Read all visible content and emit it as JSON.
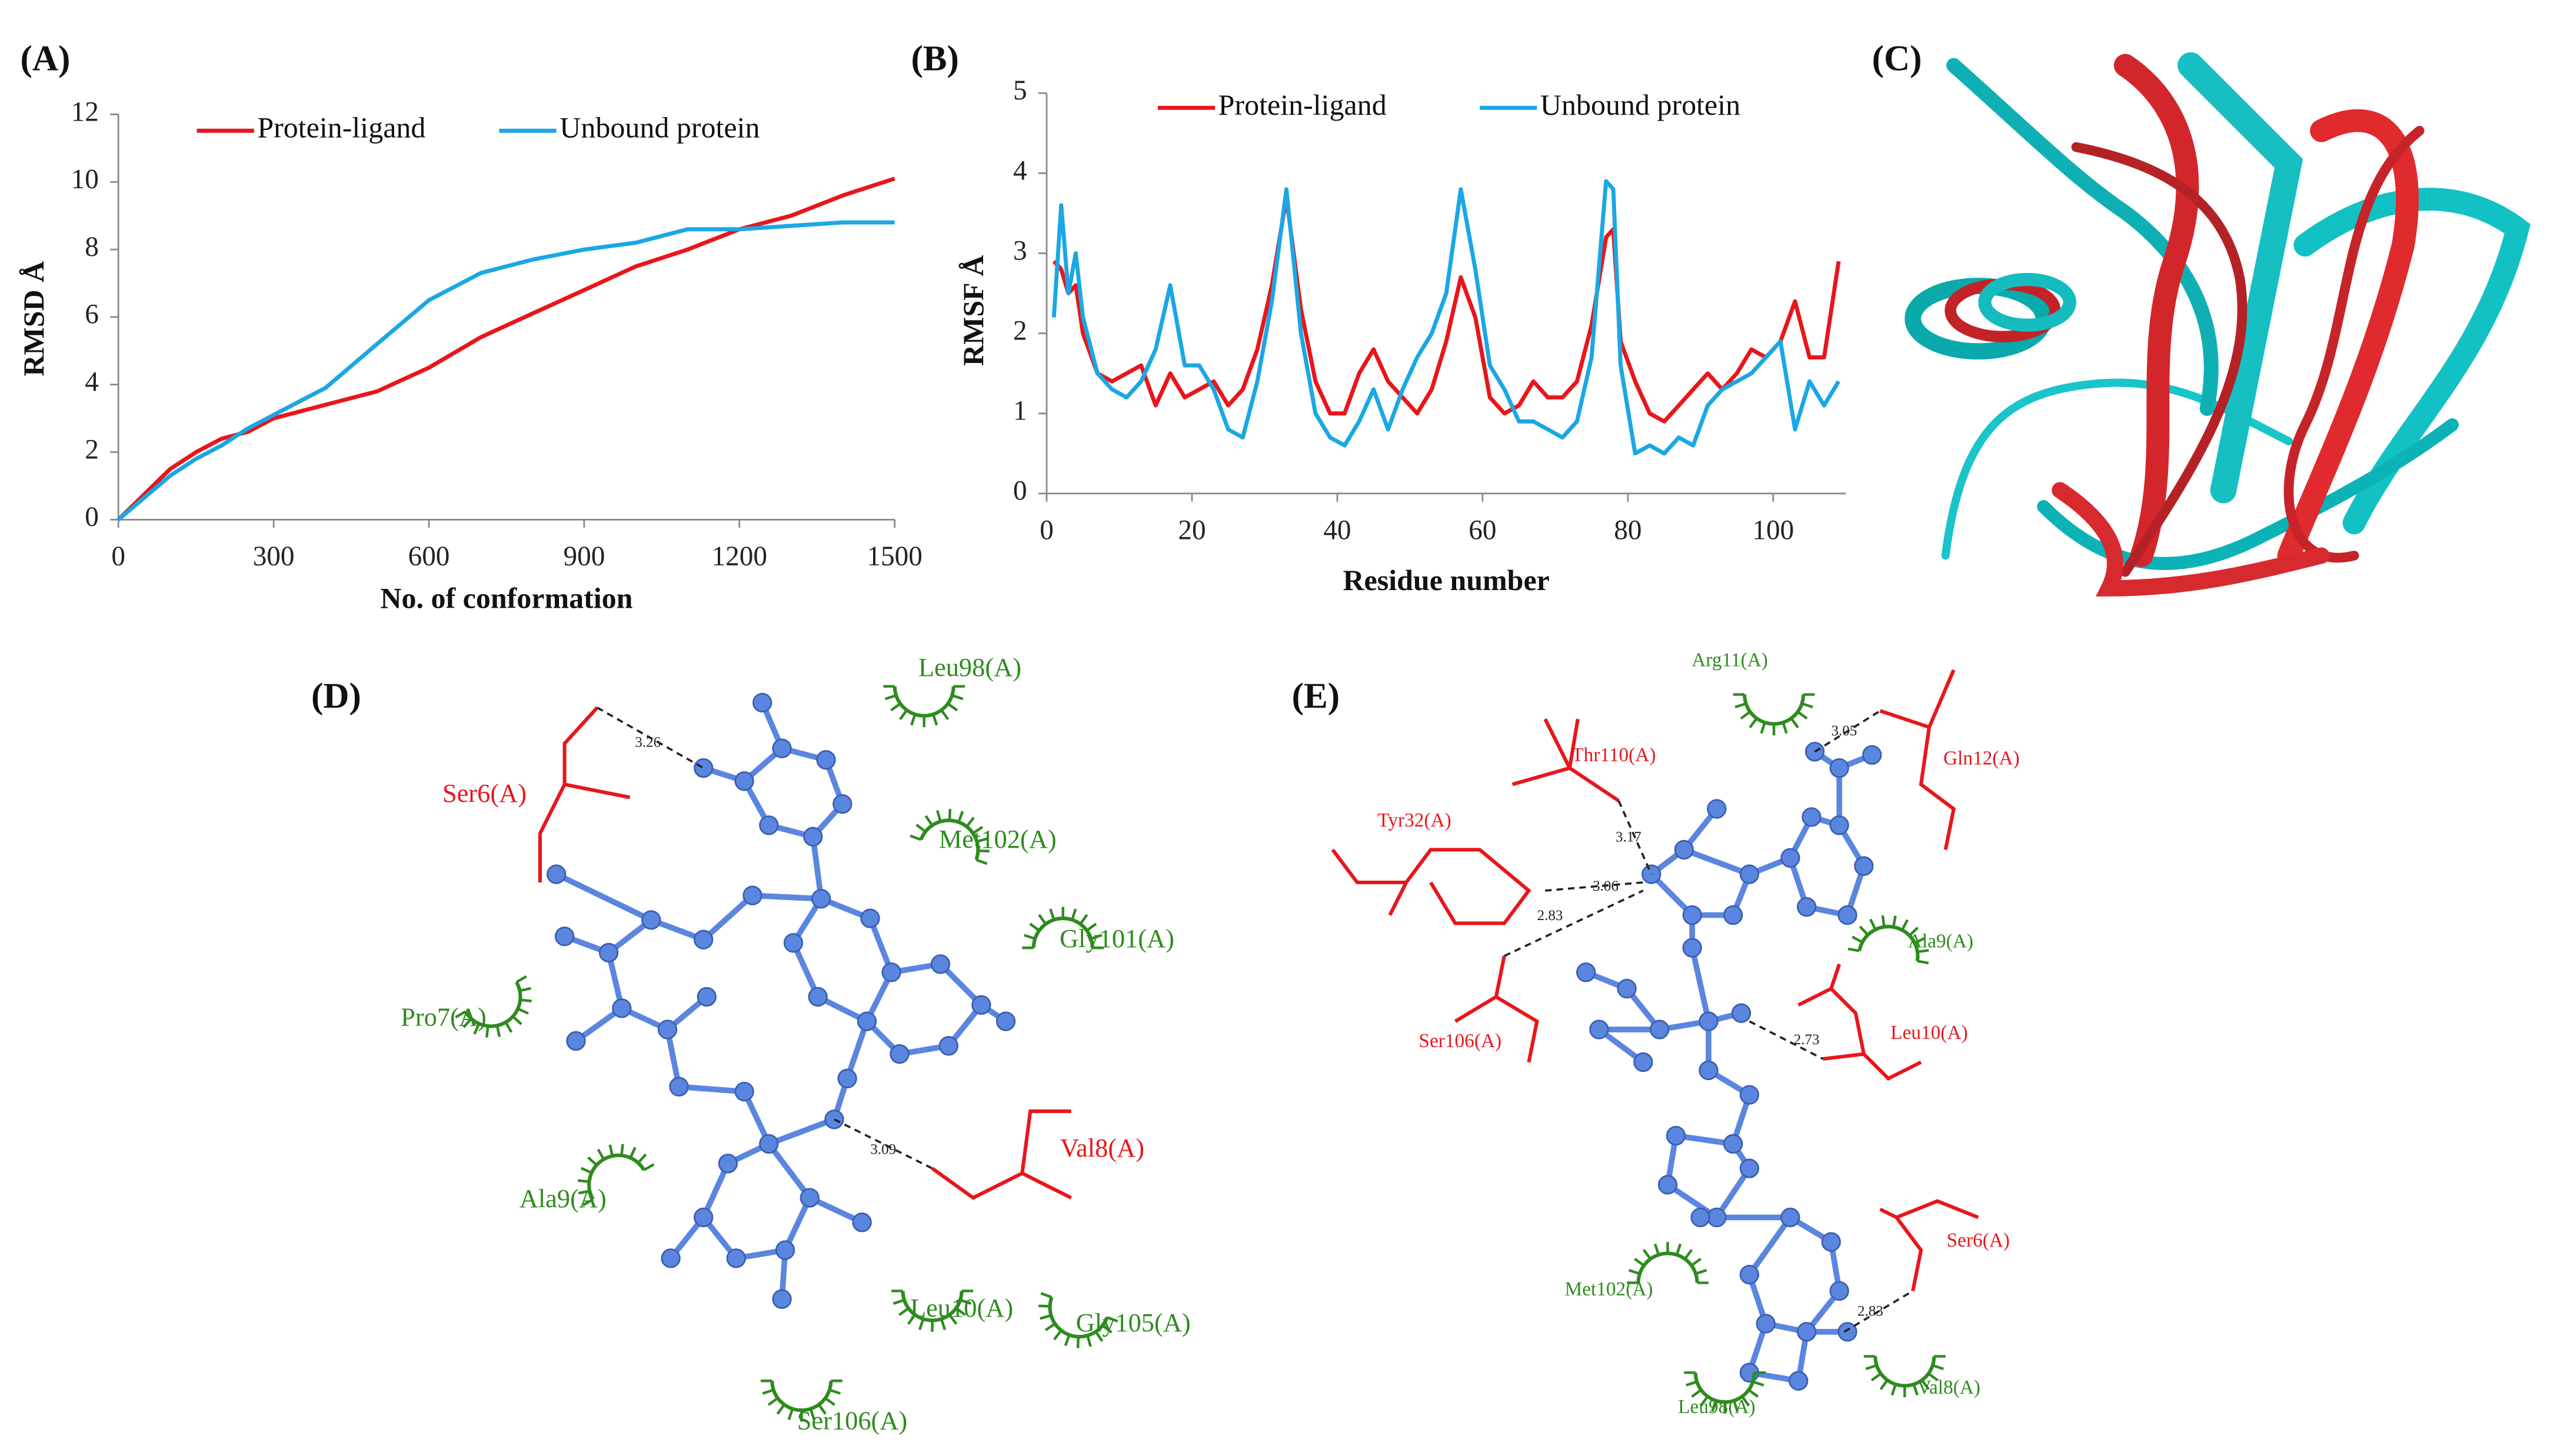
{
  "panel_labels": [
    "(A)",
    "(B)",
    "(C)",
    "(D)",
    "(E)"
  ],
  "chart_data": [
    {
      "type": "line",
      "x_label": "No. of conformation",
      "y_label": "RMSD Å",
      "x": [
        0,
        100,
        150,
        200,
        250,
        300,
        400,
        500,
        600,
        700,
        800,
        900,
        1000,
        1100,
        1200,
        1300,
        1400,
        1500
      ],
      "series": [
        {
          "name": "Protein-ligand",
          "color": "#e8161b",
          "values": [
            0,
            1.5,
            2.0,
            2.4,
            2.6,
            3.0,
            3.4,
            3.8,
            4.5,
            5.4,
            6.1,
            6.8,
            7.5,
            8.0,
            8.6,
            9.0,
            9.6,
            10.1
          ]
        },
        {
          "name": "Unbound protein",
          "color": "#1aa7e4",
          "values": [
            0,
            1.3,
            1.8,
            2.2,
            2.7,
            3.1,
            3.9,
            5.2,
            6.5,
            7.3,
            7.7,
            8.0,
            8.2,
            8.6,
            8.6,
            8.7,
            8.8,
            8.8
          ]
        }
      ],
      "xlim": [
        0,
        1500
      ],
      "xticks": [
        0,
        300,
        600,
        900,
        1200,
        1500
      ],
      "ylim": [
        0,
        12
      ],
      "yticks": [
        0,
        2,
        4,
        6,
        8,
        10,
        12
      ],
      "grid": false,
      "legend": "top"
    },
    {
      "type": "line",
      "x_label": "Residue number",
      "y_label": "RMSF Å",
      "x": [
        1,
        2,
        3,
        4,
        5,
        7,
        9,
        11,
        13,
        15,
        17,
        19,
        21,
        23,
        25,
        27,
        29,
        31,
        33,
        35,
        37,
        39,
        41,
        43,
        45,
        47,
        49,
        51,
        53,
        55,
        57,
        59,
        61,
        63,
        65,
        67,
        69,
        71,
        73,
        75,
        77,
        78,
        79,
        81,
        83,
        85,
        87,
        89,
        91,
        93,
        95,
        97,
        99,
        101,
        103,
        105,
        107,
        109
      ],
      "series": [
        {
          "name": "Protein-ligand",
          "color": "#e8161b",
          "values": [
            2.9,
            2.8,
            2.5,
            2.6,
            2.0,
            1.5,
            1.4,
            1.5,
            1.6,
            1.1,
            1.5,
            1.2,
            1.3,
            1.4,
            1.1,
            1.3,
            1.8,
            2.6,
            3.7,
            2.3,
            1.4,
            1.0,
            1.0,
            1.5,
            1.8,
            1.4,
            1.2,
            1.0,
            1.3,
            1.9,
            2.7,
            2.2,
            1.2,
            1.0,
            1.1,
            1.4,
            1.2,
            1.2,
            1.4,
            2.1,
            3.2,
            3.3,
            1.9,
            1.4,
            1.0,
            0.9,
            1.1,
            1.3,
            1.5,
            1.3,
            1.5,
            1.8,
            1.7,
            1.9,
            2.4,
            1.7,
            1.7,
            2.9
          ]
        },
        {
          "name": "Unbound protein",
          "color": "#1aa7e4",
          "values": [
            2.2,
            3.6,
            2.5,
            3.0,
            2.2,
            1.5,
            1.3,
            1.2,
            1.4,
            1.8,
            2.6,
            1.6,
            1.6,
            1.3,
            0.8,
            0.7,
            1.4,
            2.4,
            3.8,
            2.0,
            1.0,
            0.7,
            0.6,
            0.9,
            1.3,
            0.8,
            1.3,
            1.7,
            2.0,
            2.5,
            3.8,
            2.8,
            1.6,
            1.3,
            0.9,
            0.9,
            0.8,
            0.7,
            0.9,
            1.7,
            3.9,
            3.8,
            1.6,
            0.5,
            0.6,
            0.5,
            0.7,
            0.6,
            1.1,
            1.3,
            1.4,
            1.5,
            1.7,
            1.9,
            0.8,
            1.4,
            1.1,
            1.4
          ]
        }
      ],
      "xlim": [
        0,
        110
      ],
      "xticks": [
        0,
        20,
        40,
        60,
        80,
        100
      ],
      "ylim": [
        0,
        5
      ],
      "yticks": [
        0,
        1,
        2,
        3,
        4,
        5
      ],
      "grid": false,
      "legend": "top"
    }
  ],
  "diagrams": [
    {
      "residues": [
        {
          "name": "Leu98(A)",
          "interaction": "hydrophobic"
        },
        {
          "name": "Ser6(A)",
          "interaction": "hbond"
        },
        {
          "name": "Met102(A)",
          "interaction": "hydrophobic"
        },
        {
          "name": "Gly101(A)",
          "interaction": "hydrophobic"
        },
        {
          "name": "Pro7(A)",
          "interaction": "hydrophobic"
        },
        {
          "name": "Val8(A)",
          "interaction": "hbond"
        },
        {
          "name": "Ala9(A)",
          "interaction": "hydrophobic"
        },
        {
          "name": "Leu10(A)",
          "interaction": "hydrophobic"
        },
        {
          "name": "Gly105(A)",
          "interaction": "hydrophobic"
        },
        {
          "name": "Ser106(A)",
          "interaction": "hydrophobic"
        }
      ],
      "distances": [
        "3.26",
        "3.09"
      ]
    },
    {
      "residues": [
        {
          "name": "Arg11(A)",
          "interaction": "hydrophobic"
        },
        {
          "name": "Thr110(A)",
          "interaction": "hbond"
        },
        {
          "name": "Gln12(A)",
          "interaction": "hbond"
        },
        {
          "name": "Tyr32(A)",
          "interaction": "hbond"
        },
        {
          "name": "Ala9(A)",
          "interaction": "hydrophobic"
        },
        {
          "name": "Ser106(A)",
          "interaction": "hbond"
        },
        {
          "name": "Leu10(A)",
          "interaction": "hbond"
        },
        {
          "name": "Ser6(A)",
          "interaction": "hbond"
        },
        {
          "name": "Met102(A)",
          "interaction": "hydrophobic"
        },
        {
          "name": "Leu98(A)",
          "interaction": "hydrophobic"
        },
        {
          "name": "Val8(A)",
          "interaction": "hydrophobic"
        }
      ],
      "distances": [
        "3.05",
        "3.17",
        "3.06",
        "2.83",
        "2.73",
        "2.83"
      ]
    }
  ]
}
